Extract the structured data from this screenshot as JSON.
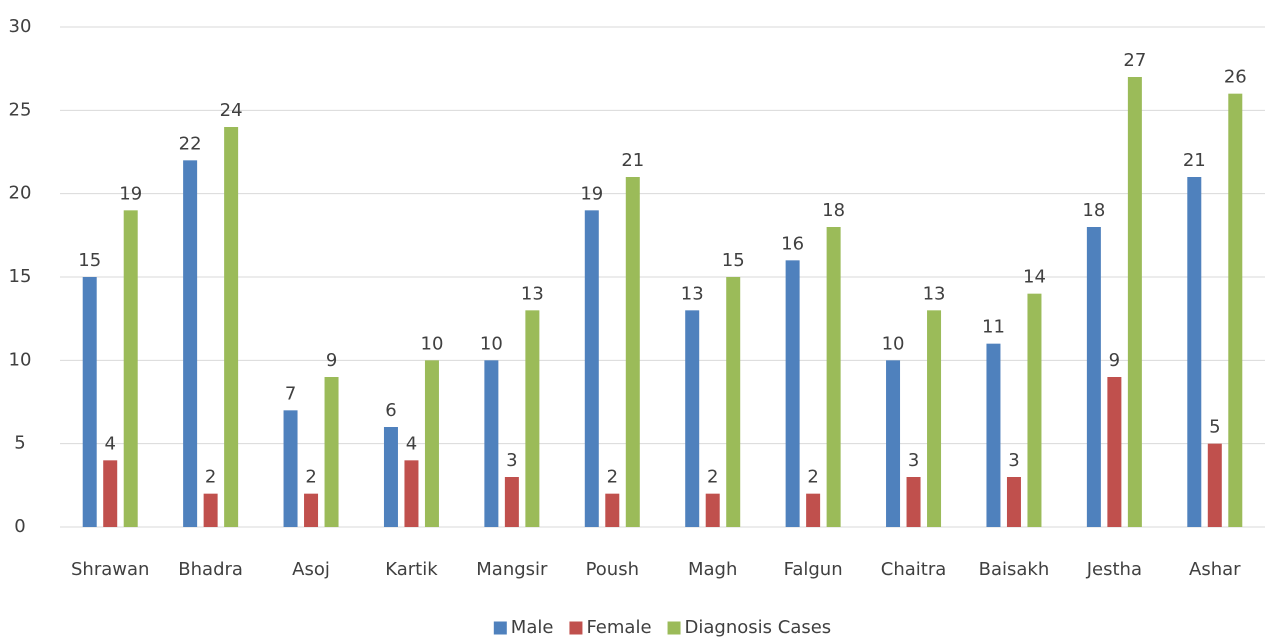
{
  "chart_data": {
    "type": "bar",
    "categories": [
      "Shrawan",
      "Bhadra",
      "Asoj",
      "Kartik",
      "Mangsir",
      "Poush",
      "Magh",
      "Falgun",
      "Chaitra",
      "Baisakh",
      "Jestha",
      "Ashar"
    ],
    "series": [
      {
        "name": "Male",
        "color": "#4f81bd",
        "values": [
          15,
          22,
          7,
          6,
          10,
          19,
          13,
          16,
          10,
          11,
          18,
          21
        ]
      },
      {
        "name": "Female",
        "color": "#c0504d",
        "values": [
          4,
          2,
          2,
          4,
          3,
          2,
          2,
          2,
          3,
          3,
          9,
          5
        ]
      },
      {
        "name": "Diagnosis Cases",
        "color": "#9bbb59",
        "values": [
          19,
          24,
          9,
          10,
          13,
          21,
          15,
          18,
          13,
          14,
          27,
          26
        ]
      }
    ],
    "ylim": [
      0,
      30
    ],
    "yticks": [
      0,
      5,
      10,
      15,
      20,
      25,
      30
    ],
    "grid": true,
    "legend": "bottom"
  }
}
